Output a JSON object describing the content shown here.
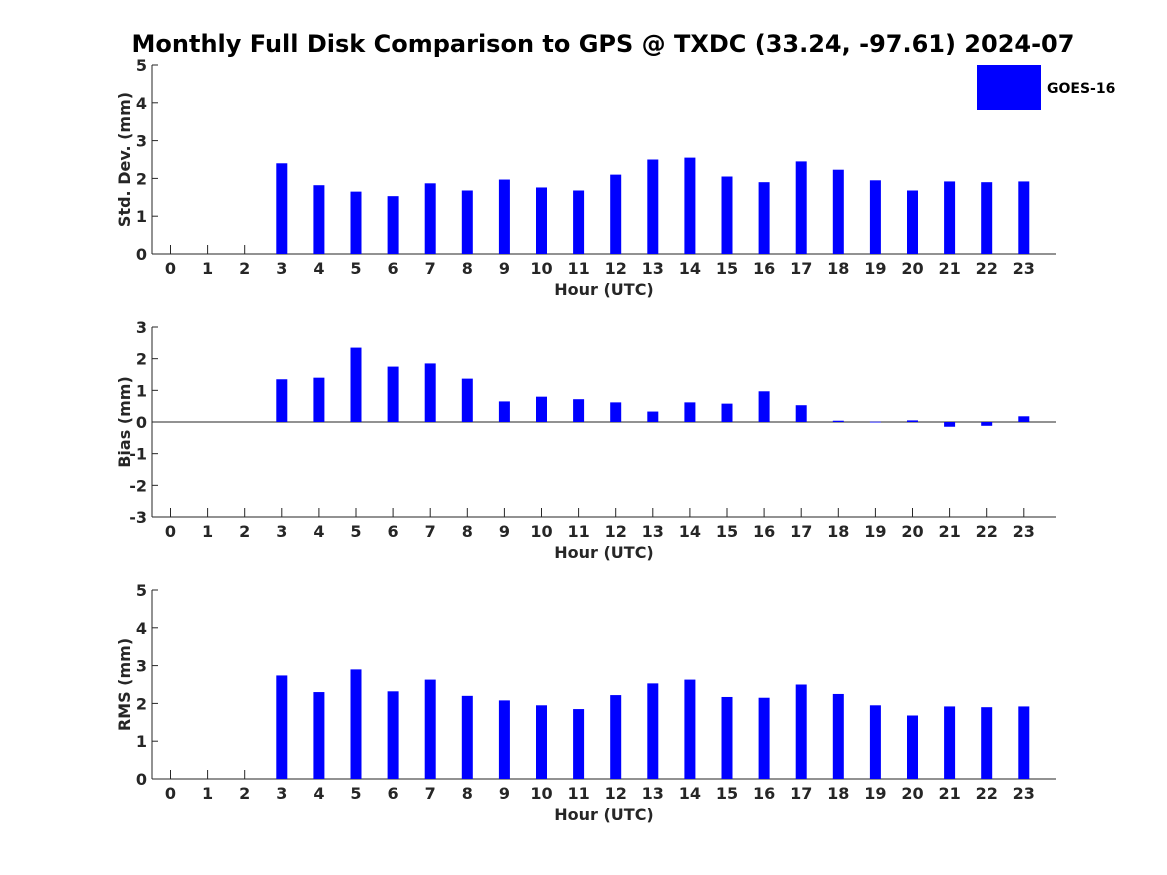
{
  "title": "Monthly Full Disk Comparison to GPS @ TXDC (33.24, -97.61) 2024-07",
  "legend": {
    "label": "GOES-16",
    "placement": "top-right"
  },
  "colors": {
    "bar": "#0000ff",
    "axis": "#262626",
    "title": "#000000"
  },
  "chart_data": [
    {
      "type": "bar",
      "title": "Monthly Full Disk Comparison to GPS @ TXDC (33.24, -97.61) 2024-07",
      "xlabel": "Hour (UTC)",
      "ylabel": "Std. Dev. (mm)",
      "ylim": [
        0,
        5
      ],
      "yticks": [
        "0",
        "1",
        "2",
        "3",
        "4",
        "5"
      ],
      "categories": [
        "0",
        "1",
        "2",
        "3",
        "4",
        "5",
        "6",
        "7",
        "8",
        "9",
        "10",
        "11",
        "12",
        "13",
        "14",
        "15",
        "16",
        "17",
        "18",
        "19",
        "20",
        "21",
        "22",
        "23"
      ],
      "series": [
        {
          "name": "GOES-16",
          "values": [
            null,
            null,
            null,
            2.4,
            1.82,
            1.65,
            1.53,
            1.87,
            1.68,
            1.97,
            1.76,
            1.68,
            2.1,
            2.5,
            2.55,
            2.05,
            1.9,
            2.45,
            2.23,
            1.95,
            1.68,
            1.92,
            1.9,
            1.92
          ]
        }
      ]
    },
    {
      "type": "bar",
      "xlabel": "Hour (UTC)",
      "ylabel": "Bias (mm)",
      "ylim": [
        -3,
        3
      ],
      "yticks": [
        "-3",
        "-2",
        "-1",
        "0",
        "1",
        "2",
        "3"
      ],
      "categories": [
        "0",
        "1",
        "2",
        "3",
        "4",
        "5",
        "6",
        "7",
        "8",
        "9",
        "10",
        "11",
        "12",
        "13",
        "14",
        "15",
        "16",
        "17",
        "18",
        "19",
        "20",
        "21",
        "22",
        "23"
      ],
      "series": [
        {
          "name": "GOES-16",
          "values": [
            null,
            null,
            null,
            1.35,
            1.4,
            2.35,
            1.75,
            1.85,
            1.37,
            0.65,
            0.8,
            0.72,
            0.62,
            0.33,
            0.62,
            0.58,
            0.97,
            0.53,
            0.04,
            0.01,
            0.05,
            -0.15,
            -0.12,
            0.18
          ]
        }
      ]
    },
    {
      "type": "bar",
      "xlabel": "Hour (UTC)",
      "ylabel": "RMS (mm)",
      "ylim": [
        0,
        5
      ],
      "yticks": [
        "0",
        "1",
        "2",
        "3",
        "4",
        "5"
      ],
      "categories": [
        "0",
        "1",
        "2",
        "3",
        "4",
        "5",
        "6",
        "7",
        "8",
        "9",
        "10",
        "11",
        "12",
        "13",
        "14",
        "15",
        "16",
        "17",
        "18",
        "19",
        "20",
        "21",
        "22",
        "23"
      ],
      "series": [
        {
          "name": "GOES-16",
          "values": [
            null,
            null,
            null,
            2.74,
            2.3,
            2.9,
            2.32,
            2.63,
            2.2,
            2.08,
            1.95,
            1.85,
            2.22,
            2.53,
            2.63,
            2.17,
            2.15,
            2.5,
            2.25,
            1.95,
            1.68,
            1.92,
            1.9,
            1.92
          ]
        }
      ]
    }
  ]
}
